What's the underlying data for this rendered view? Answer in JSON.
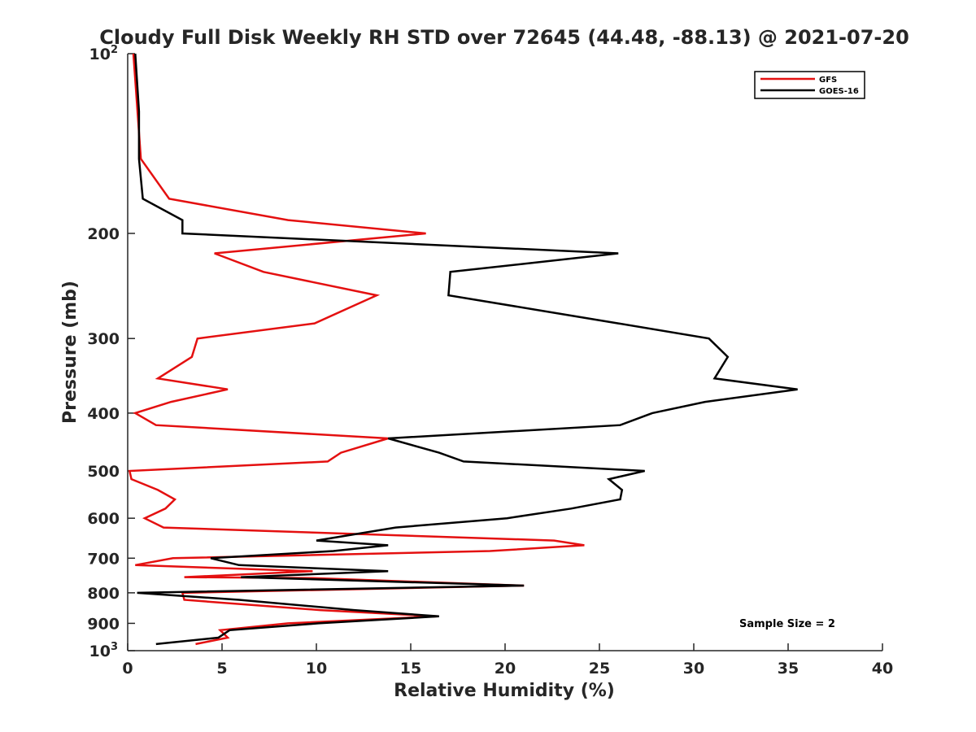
{
  "chart_data": {
    "type": "line",
    "title": "Cloudy Full Disk Weekly RH STD over 72645 (44.48, -88.13) @ 2021-07-20",
    "xlabel": "Relative Humidity (%)",
    "ylabel": "Pressure (mb)",
    "xlim": [
      0,
      40
    ],
    "ylim": [
      1000,
      100
    ],
    "yscale": "log",
    "y_reversed": true,
    "xticks": [
      0,
      5,
      10,
      15,
      20,
      25,
      30,
      35,
      40
    ],
    "yticks": [
      {
        "value": 100,
        "label": "10",
        "sup": "2"
      },
      {
        "value": 200,
        "label": "200"
      },
      {
        "value": 300,
        "label": "300"
      },
      {
        "value": 400,
        "label": "400"
      },
      {
        "value": 500,
        "label": "500"
      },
      {
        "value": 600,
        "label": "600"
      },
      {
        "value": 700,
        "label": "700"
      },
      {
        "value": 800,
        "label": "800"
      },
      {
        "value": 900,
        "label": "900"
      },
      {
        "value": 1000,
        "label": "10",
        "sup": "3"
      }
    ],
    "grid": false,
    "legend_position": "top-right",
    "annotation": "Sample Size = 2",
    "series": [
      {
        "name": "GFS",
        "color": "#e41010",
        "points": [
          [
            0.3,
            100
          ],
          [
            0.7,
            150
          ],
          [
            2.2,
            175
          ],
          [
            8.5,
            190
          ],
          [
            15.8,
            200
          ],
          [
            4.6,
            216
          ],
          [
            7.2,
            232
          ],
          [
            13.2,
            254
          ],
          [
            9.9,
            283
          ],
          [
            3.7,
            300
          ],
          [
            3.4,
            322
          ],
          [
            1.6,
            350
          ],
          [
            5.3,
            365
          ],
          [
            2.3,
            383
          ],
          [
            0.4,
            400
          ],
          [
            1.5,
            419
          ],
          [
            13.8,
            441
          ],
          [
            11.3,
            466
          ],
          [
            10.6,
            482
          ],
          [
            0.1,
            500
          ],
          [
            0.2,
            516
          ],
          [
            1.6,
            538
          ],
          [
            2.5,
            558
          ],
          [
            2.0,
            578
          ],
          [
            0.9,
            600
          ],
          [
            1.9,
            622
          ],
          [
            22.6,
            654
          ],
          [
            24.2,
            666
          ],
          [
            19.2,
            681
          ],
          [
            2.4,
            700
          ],
          [
            0.4,
            719
          ],
          [
            9.8,
            736
          ],
          [
            3.0,
            753
          ],
          [
            9.8,
            756
          ],
          [
            21.0,
            778
          ],
          [
            2.9,
            800
          ],
          [
            3.0,
            822
          ],
          [
            10.2,
            855
          ],
          [
            16.4,
            876
          ],
          [
            8.5,
            900
          ],
          [
            4.9,
            924
          ],
          [
            5.3,
            951
          ],
          [
            3.6,
            975
          ]
        ]
      },
      {
        "name": "GOES-16",
        "color": "#000000",
        "points": [
          [
            0.4,
            100
          ],
          [
            0.6,
            125
          ],
          [
            0.6,
            150
          ],
          [
            0.8,
            175
          ],
          [
            2.9,
            190
          ],
          [
            2.9,
            200
          ],
          [
            26.0,
            216
          ],
          [
            17.1,
            232
          ],
          [
            17.0,
            254
          ],
          [
            26.0,
            283
          ],
          [
            30.8,
            300
          ],
          [
            31.8,
            322
          ],
          [
            31.1,
            350
          ],
          [
            35.5,
            365
          ],
          [
            30.6,
            383
          ],
          [
            27.8,
            400
          ],
          [
            26.1,
            419
          ],
          [
            13.8,
            441
          ],
          [
            16.5,
            466
          ],
          [
            17.8,
            482
          ],
          [
            27.4,
            500
          ],
          [
            25.5,
            516
          ],
          [
            26.2,
            538
          ],
          [
            26.1,
            558
          ],
          [
            23.5,
            578
          ],
          [
            20.1,
            600
          ],
          [
            14.2,
            622
          ],
          [
            10.0,
            654
          ],
          [
            13.8,
            666
          ],
          [
            10.9,
            681
          ],
          [
            4.4,
            700
          ],
          [
            5.9,
            719
          ],
          [
            13.8,
            736
          ],
          [
            6.0,
            753
          ],
          [
            21.0,
            778
          ],
          [
            0.5,
            800
          ],
          [
            5.9,
            822
          ],
          [
            12.0,
            855
          ],
          [
            16.5,
            876
          ],
          [
            10.1,
            900
          ],
          [
            5.4,
            924
          ],
          [
            4.8,
            951
          ],
          [
            1.5,
            975
          ]
        ]
      }
    ]
  }
}
